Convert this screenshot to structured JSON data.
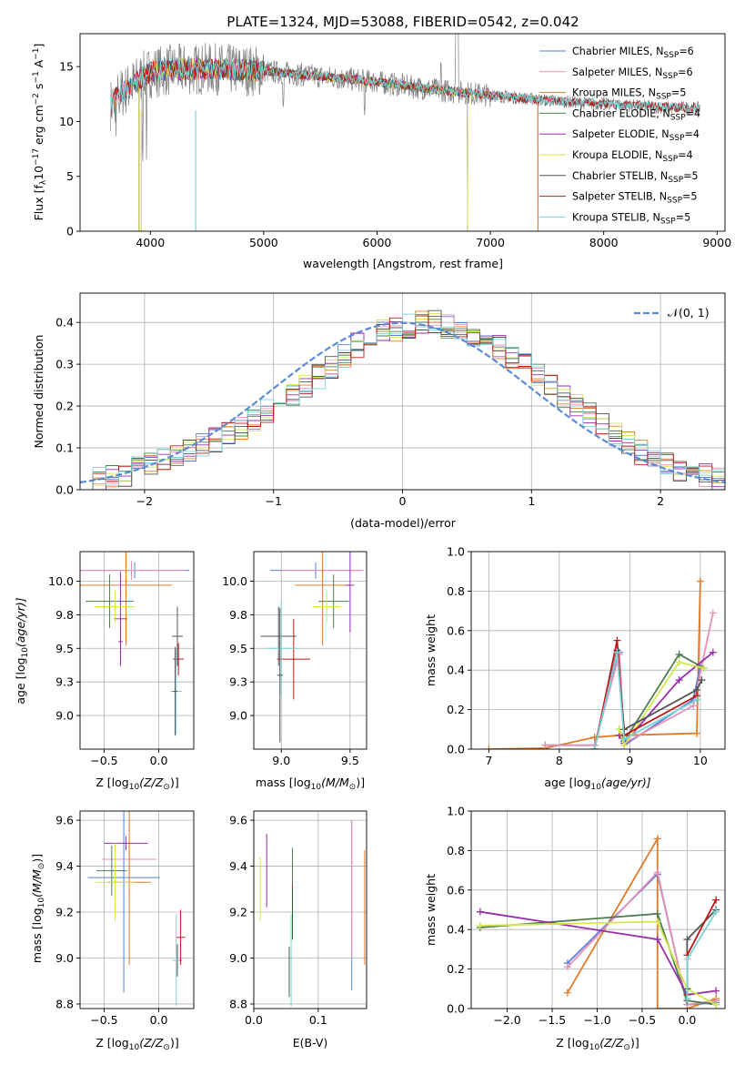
{
  "title": "PLATE=1324, MJD=53088, FIBERID=0542, z=0.042",
  "colors": {
    "Chabrier MILES": "#5b7fcf",
    "Salpeter MILES": "#e890b8",
    "Kroupa MILES": "#e07b28",
    "Chabrier ELODIE": "#4f7d52",
    "Salpeter ELODIE": "#9a2eb0",
    "Kroupa ELODIE": "#d4e84a",
    "Chabrier STELIB": "#555555",
    "Salpeter STELIB": "#c01818",
    "Kroupa STELIB": "#79d3d6"
  },
  "chart_data": [
    {
      "id": "spectrum",
      "type": "line",
      "xlabel": "wavelength [Angstrom, rest frame]",
      "ylabel": "Flux [f",
      "ylabel_sub": "λ",
      "ylabel_mid": "10",
      "ylabel_sup": "−17",
      "ylabel_end": " erg cm",
      "ylabel_sup2": "−2",
      "ylabel_end2": " s",
      "ylabel_sup3": "−1",
      "ylabel_end3": " A",
      "ylabel_sup4": "−1",
      "ylabel_close": "]",
      "xlim": [
        3380,
        9070
      ],
      "ylim": [
        0,
        18
      ],
      "xticks": [
        4000,
        5000,
        6000,
        7000,
        8000,
        9000
      ],
      "yticks": [
        0,
        5,
        10,
        15
      ],
      "legend_position": "upper right",
      "legend": [
        {
          "label": "Chabrier MILES, N",
          "sub": "SSP",
          "value": "=6"
        },
        {
          "label": "Salpeter MILES, N",
          "sub": "SSP",
          "value": "=6"
        },
        {
          "label": "Kroupa MILES, N",
          "sub": "SSP",
          "value": "=5"
        },
        {
          "label": "Chabrier ELODIE, N",
          "sub": "SSP",
          "value": "=4"
        },
        {
          "label": "Salpeter ELODIE, N",
          "sub": "SSP",
          "value": "=4"
        },
        {
          "label": "Kroupa ELODIE, N",
          "sub": "SSP",
          "value": "=4"
        },
        {
          "label": "Chabrier STELIB, N",
          "sub": "SSP",
          "value": "=5"
        },
        {
          "label": "Salpeter STELIB, N",
          "sub": "SSP",
          "value": "=5"
        },
        {
          "label": "Kroupa STELIB, N",
          "sub": "SSP",
          "value": "=5"
        }
      ],
      "data_series": {
        "name": "data",
        "color": "#808080",
        "x_range": [
          3650,
          8850
        ]
      },
      "continuum_shape": {
        "x": [
          3650,
          3700,
          3800,
          3900,
          4000,
          4200,
          4500,
          5000,
          5500,
          6000,
          6500,
          7000,
          7400,
          7800,
          8200,
          8500,
          8850
        ],
        "y": [
          11.5,
          12.2,
          13.0,
          13.8,
          14.5,
          14.7,
          14.8,
          14.6,
          14.1,
          13.6,
          12.9,
          12.4,
          12.0,
          11.7,
          11.5,
          11.3,
          11.2
        ]
      },
      "model_ranges": {
        "MILES": [
          3650,
          7420
        ],
        "ELODIE": [
          3900,
          6800
        ],
        "STELIB": [
          3650,
          8850
        ]
      }
    },
    {
      "id": "residuals",
      "type": "histogram",
      "xlabel": "(data-model)/error",
      "ylabel": "Normed distribution",
      "xlim": [
        -2.5,
        2.5
      ],
      "ylim": [
        0,
        0.47
      ],
      "xticks": [
        -2,
        -1,
        0,
        1,
        2
      ],
      "yticks": [
        0.0,
        0.1,
        0.2,
        0.3,
        0.4
      ],
      "legend_label": "𝒩(0, 1)",
      "legend_position": "upper right",
      "bins": {
        "start": -2.5,
        "width": 0.1,
        "count": 50
      },
      "base_values": [
        0.02,
        0.025,
        0.03,
        0.038,
        0.05,
        0.06,
        0.075,
        0.085,
        0.095,
        0.105,
        0.12,
        0.135,
        0.15,
        0.17,
        0.19,
        0.21,
        0.23,
        0.25,
        0.27,
        0.295,
        0.32,
        0.345,
        0.36,
        0.38,
        0.385,
        0.39,
        0.398,
        0.4,
        0.39,
        0.385,
        0.372,
        0.36,
        0.34,
        0.315,
        0.3,
        0.275,
        0.25,
        0.225,
        0.2,
        0.18,
        0.16,
        0.13,
        0.11,
        0.09,
        0.075,
        0.06,
        0.05,
        0.04,
        0.032,
        0.025
      ]
    },
    {
      "id": "age-vs-Z",
      "type": "errorbar",
      "xlabel": "Z [log",
      "xlabel_sub": "10",
      "xlabel_end": "(Z/Z",
      "xlabel_sub2": "⊙",
      "xlabel_close": ")]",
      "ylabel": "age  [log",
      "ylabel_sub": "10",
      "ylabel_end": "(age/yr)]",
      "xlim": [
        -0.72,
        0.32
      ],
      "ylim": [
        8.75,
        10.22
      ],
      "xticks": [
        -0.5,
        0.0
      ],
      "yticks": [
        9.0,
        9.25,
        9.5,
        9.75,
        10.0
      ],
      "points": [
        {
          "model": "Chabrier MILES",
          "x": -0.22,
          "xerr": 0.5,
          "y": 10.08,
          "yerr": 0.06
        },
        {
          "model": "Salpeter MILES",
          "x": -0.25,
          "xerr": 0.48,
          "y": 10.08,
          "yerr": 0.07
        },
        {
          "model": "Kroupa MILES",
          "x": -0.3,
          "xerr": 0.42,
          "y": 9.97,
          "yerr": 0.45
        },
        {
          "model": "Chabrier ELODIE",
          "x": -0.45,
          "xerr": 0.22,
          "y": 9.85,
          "yerr": 0.2
        },
        {
          "model": "Salpeter ELODIE",
          "x": -0.35,
          "xerr": 0.06,
          "y": 9.72,
          "yerr": 0.35
        },
        {
          "model": "Kroupa ELODIE",
          "x": -0.4,
          "xerr": 0.18,
          "y": 9.81,
          "yerr": 0.12
        },
        {
          "model": "Chabrier STELIB",
          "x": 0.17,
          "xerr": 0.05,
          "y": 9.59,
          "yerr": 0.22
        },
        {
          "model": "Salpeter STELIB",
          "x": 0.18,
          "xerr": 0.05,
          "y": 9.42,
          "yerr": 0.12
        },
        {
          "model": "Kroupa STELIB",
          "x": 0.16,
          "xerr": 0.05,
          "y": 9.18,
          "yerr": 0.32
        },
        {
          "model": "Chabrier STELIB",
          "x": 0.15,
          "xerr": 0.02,
          "y": 9.18,
          "yerr": 0.33
        },
        {
          "model": "Salpeter ELODIE",
          "x": -0.35,
          "xerr": 0.02,
          "y": 9.55,
          "yerr": 0.18
        }
      ]
    },
    {
      "id": "age-vs-mass",
      "type": "errorbar",
      "xlabel": "mass [log",
      "xlabel_sub": "10",
      "xlabel_end": "(M/M",
      "xlabel_sub2": "⊙",
      "xlabel_close": ")]",
      "xlim": [
        8.8,
        9.62
      ],
      "ylim": [
        8.75,
        10.22
      ],
      "xticks": [
        9.0,
        9.5
      ],
      "yticks": [
        9.0,
        9.25,
        9.5,
        9.75,
        10.0
      ],
      "points": [
        {
          "model": "Chabrier MILES",
          "x": 9.25,
          "xerr": 0.33,
          "y": 10.08,
          "yerr": 0.06
        },
        {
          "model": "Salpeter MILES",
          "x": 9.3,
          "xerr": 0.3,
          "y": 10.08,
          "yerr": 0.07
        },
        {
          "model": "Kroupa MILES",
          "x": 9.3,
          "xerr": 0.2,
          "y": 9.97,
          "yerr": 0.45
        },
        {
          "model": "Chabrier ELODIE",
          "x": 9.38,
          "xerr": 0.11,
          "y": 9.85,
          "yerr": 0.2
        },
        {
          "model": "Salpeter ELODIE",
          "x": 9.5,
          "xerr": 0.03,
          "y": 9.97,
          "yerr": 0.35
        },
        {
          "model": "Kroupa ELODIE",
          "x": 9.33,
          "xerr": 0.1,
          "y": 9.81,
          "yerr": 0.12
        },
        {
          "model": "Chabrier STELIB",
          "x": 8.98,
          "xerr": 0.13,
          "y": 9.59,
          "yerr": 0.22
        },
        {
          "model": "Salpeter STELIB",
          "x": 9.09,
          "xerr": 0.12,
          "y": 9.42,
          "yerr": 0.3
        },
        {
          "model": "Kroupa STELIB",
          "x": 9.0,
          "xerr": 0.12,
          "y": 9.5,
          "yerr": 0.35
        },
        {
          "model": "Chabrier STELIB",
          "x": 8.99,
          "xerr": 0.02,
          "y": 9.3,
          "yerr": 0.5
        }
      ]
    },
    {
      "id": "weight-vs-age",
      "type": "line",
      "xlabel": "age  [log",
      "xlabel_sub": "10",
      "xlabel_end": "(age/yr)]",
      "ylabel": "mass weight",
      "xlim": [
        6.75,
        10.35
      ],
      "ylim": [
        0,
        1.0
      ],
      "xticks": [
        7,
        8,
        9,
        10
      ],
      "yticks": [
        0.0,
        0.2,
        0.4,
        0.6,
        0.8,
        1.0
      ],
      "series": [
        {
          "model": "Kroupa MILES",
          "x": [
            7.0,
            7.8,
            8.5,
            8.85,
            8.92,
            9.95,
            10.0
          ],
          "y": [
            0.0,
            0.005,
            0.06,
            0.07,
            0.07,
            0.08,
            0.85
          ]
        },
        {
          "model": "Chabrier MILES",
          "x": [
            7.8,
            8.5,
            8.85,
            8.92,
            9.9,
            10.0
          ],
          "y": [
            0.02,
            0.02,
            0.49,
            0.02,
            0.25,
            0.42
          ]
        },
        {
          "model": "Salpeter MILES",
          "x": [
            7.8,
            8.5,
            8.85,
            8.92,
            9.9,
            10.18
          ],
          "y": [
            0.02,
            0.02,
            0.48,
            0.03,
            0.22,
            0.69
          ]
        },
        {
          "model": "Chabrier ELODIE",
          "x": [
            8.85,
            8.92,
            9.7,
            10.05
          ],
          "y": [
            0.1,
            0.04,
            0.48,
            0.41
          ]
        },
        {
          "model": "Salpeter ELODIE",
          "x": [
            8.85,
            8.92,
            9.7,
            10.18
          ],
          "y": [
            0.07,
            0.03,
            0.35,
            0.49
          ]
        },
        {
          "model": "Kroupa ELODIE",
          "x": [
            8.85,
            8.92,
            9.7,
            10.05
          ],
          "y": [
            0.1,
            0.02,
            0.44,
            0.41
          ]
        },
        {
          "model": "Chabrier STELIB",
          "x": [
            8.5,
            8.82,
            8.92,
            9.95,
            10.02
          ],
          "y": [
            0.0,
            0.5,
            0.1,
            0.3,
            0.35
          ]
        },
        {
          "model": "Salpeter STELIB",
          "x": [
            8.5,
            8.82,
            8.92,
            9.95
          ],
          "y": [
            0.0,
            0.55,
            0.07,
            0.27
          ]
        },
        {
          "model": "Kroupa STELIB",
          "x": [
            8.5,
            8.82,
            8.92,
            9.95
          ],
          "y": [
            0.0,
            0.49,
            0.05,
            0.25
          ]
        }
      ]
    },
    {
      "id": "mass-vs-Z",
      "type": "errorbar",
      "xlabel": "Z [log",
      "xlabel_sub": "10",
      "xlabel_end": "(Z/Z",
      "xlabel_sub2": "⊙",
      "xlabel_close": ")]",
      "ylabel": "mass [log",
      "ylabel_sub": "10",
      "ylabel_end": "(M/M",
      "ylabel_sub2": "⊙",
      "ylabel_close": ")]",
      "xlim": [
        -0.72,
        0.32
      ],
      "ylim": [
        8.78,
        9.64
      ],
      "xticks": [
        -0.5,
        0.0
      ],
      "yticks": [
        8.8,
        9.0,
        9.2,
        9.4,
        9.6
      ],
      "points": [
        {
          "model": "Chabrier MILES",
          "x": -0.32,
          "xerr": 0.33,
          "y": 9.35,
          "yerr": 0.5
        },
        {
          "model": "Salpeter MILES",
          "x": -0.27,
          "xerr": 0.25,
          "y": 9.43,
          "yerr": 0.17
        },
        {
          "model": "Kroupa MILES",
          "x": -0.27,
          "xerr": 0.2,
          "y": 9.33,
          "yerr": 0.36
        },
        {
          "model": "Chabrier ELODIE",
          "x": -0.43,
          "xerr": 0.14,
          "y": 9.38,
          "yerr": 0.11
        },
        {
          "model": "Salpeter ELODIE",
          "x": -0.3,
          "xerr": 0.2,
          "y": 9.5,
          "yerr": 0.03
        },
        {
          "model": "Kroupa ELODIE",
          "x": -0.4,
          "xerr": 0.18,
          "y": 9.33,
          "yerr": 0.17
        },
        {
          "model": "Chabrier STELIB",
          "x": 0.17,
          "xerr": 0.04,
          "y": 8.99,
          "yerr": 0.07
        },
        {
          "model": "Salpeter STELIB",
          "x": 0.2,
          "xerr": 0.04,
          "y": 9.09,
          "yerr": 0.12
        },
        {
          "model": "Kroupa STELIB",
          "x": 0.16,
          "xerr": 0.03,
          "y": 8.99,
          "yerr": 0.2
        }
      ]
    },
    {
      "id": "mass-vs-ebv",
      "type": "errorbar",
      "xlabel": "E(B-V)",
      "xlim": [
        0,
        0.175
      ],
      "ylim": [
        8.78,
        9.64
      ],
      "xticks": [
        0.0,
        0.1
      ],
      "yticks": [
        8.8,
        9.0,
        9.2,
        9.4,
        9.6
      ],
      "points": [
        {
          "model": "Chabrier MILES",
          "x": 0.152,
          "y": 9.23,
          "yerr": 0.37
        },
        {
          "model": "Salpeter MILES",
          "x": 0.152,
          "y": 9.3,
          "yerr": 0.3
        },
        {
          "model": "Kroupa MILES",
          "x": 0.172,
          "y": 9.22,
          "yerr": 0.25
        },
        {
          "model": "Chabrier ELODIE",
          "x": 0.06,
          "y": 9.3,
          "yerr": 0.18
        },
        {
          "model": "Salpeter ELODIE",
          "x": 0.02,
          "y": 9.38,
          "yerr": 0.16
        },
        {
          "model": "Kroupa ELODIE",
          "x": 0.01,
          "y": 9.3,
          "yerr": 0.14
        },
        {
          "model": "Chabrier STELIB",
          "x": 0.055,
          "y": 8.94,
          "yerr": 0.11
        },
        {
          "model": "Salpeter STELIB",
          "x": 0.06,
          "y": 9.2,
          "yerr": 0.12
        },
        {
          "model": "Kroupa STELIB",
          "x": 0.058,
          "y": 8.99,
          "yerr": 0.2
        }
      ]
    },
    {
      "id": "weight-vs-Z",
      "type": "line",
      "xlabel": "Z [log",
      "xlabel_sub": "10",
      "xlabel_end": "(Z/Z",
      "xlabel_sub2": "⊙",
      "xlabel_close": ")]",
      "ylabel": "mass weight",
      "xlim": [
        -2.4,
        0.42
      ],
      "ylim": [
        0,
        1.0
      ],
      "xticks": [
        -2.0,
        -1.5,
        -1.0,
        -0.5,
        0.0
      ],
      "yticks": [
        0.0,
        0.2,
        0.4,
        0.6,
        0.8,
        1.0
      ],
      "series": [
        {
          "model": "Kroupa MILES",
          "x": [
            -1.33,
            -0.33,
            -0.33,
            0.0,
            0.32
          ],
          "y": [
            0.08,
            0.86,
            0.0,
            0.0,
            0.05
          ]
        },
        {
          "model": "Chabrier MILES",
          "x": [
            -1.33,
            -0.33,
            0.0,
            0.32
          ],
          "y": [
            0.23,
            0.68,
            0.02,
            0.03
          ]
        },
        {
          "model": "Salpeter MILES",
          "x": [
            -1.33,
            -0.33,
            0.0,
            0.32
          ],
          "y": [
            0.21,
            0.69,
            0.02,
            0.04
          ]
        },
        {
          "model": "Chabrier ELODIE",
          "x": [
            -2.3,
            -0.33,
            0.0,
            0.32
          ],
          "y": [
            0.41,
            0.48,
            0.04,
            0.02
          ]
        },
        {
          "model": "Salpeter ELODIE",
          "x": [
            -2.3,
            -0.33,
            0.0,
            0.32
          ],
          "y": [
            0.49,
            0.35,
            0.07,
            0.09
          ]
        },
        {
          "model": "Kroupa ELODIE",
          "x": [
            -2.3,
            -0.33,
            0.0,
            0.32
          ],
          "y": [
            0.42,
            0.44,
            0.1,
            0.02
          ]
        },
        {
          "model": "Chabrier STELIB",
          "x": [
            0.0,
            0.0,
            0.32
          ],
          "y": [
            0.1,
            0.35,
            0.5
          ]
        },
        {
          "model": "Salpeter STELIB",
          "x": [
            0.0,
            0.0,
            0.32
          ],
          "y": [
            0.07,
            0.27,
            0.55
          ]
        },
        {
          "model": "Kroupa STELIB",
          "x": [
            0.0,
            0.0,
            0.32
          ],
          "y": [
            0.05,
            0.25,
            0.49
          ]
        }
      ]
    }
  ]
}
